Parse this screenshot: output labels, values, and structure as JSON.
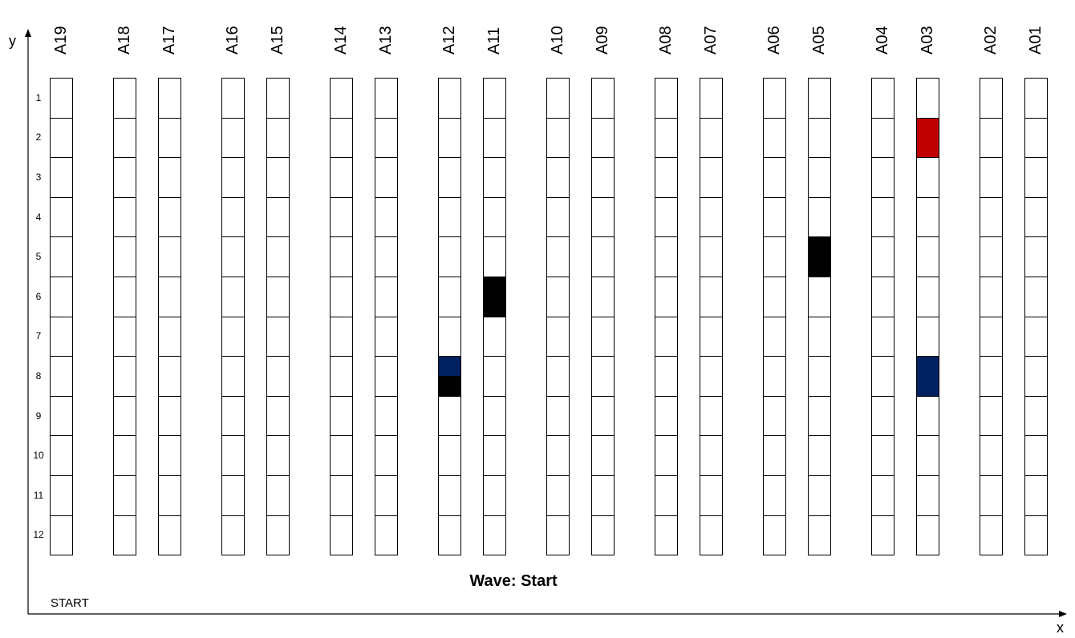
{
  "axes": {
    "y_label": "y",
    "x_label": "x"
  },
  "wave_text": "Wave: Start",
  "start_text": "START",
  "columns": [
    "A19",
    "A18",
    "A17",
    "A16",
    "A15",
    "A14",
    "A13",
    "A12",
    "A11",
    "A10",
    "A09",
    "A08",
    "A07",
    "A06",
    "A05",
    "A04",
    "A03",
    "A02",
    "A01"
  ],
  "rows": [
    "1",
    "2",
    "3",
    "4",
    "5",
    "6",
    "7",
    "8",
    "9",
    "10",
    "11",
    "12"
  ],
  "colors": {
    "red": "#c00000",
    "navy": "#002060",
    "black": "#000000",
    "cell_border": "#000000"
  },
  "marked_cells": [
    {
      "column": "A03",
      "row": 2,
      "color": "#c00000",
      "portion": "full"
    },
    {
      "column": "A05",
      "row": 5,
      "color": "#000000",
      "portion": "full"
    },
    {
      "column": "A11",
      "row": 6,
      "color": "#000000",
      "portion": "full"
    },
    {
      "column": "A12",
      "row": 8,
      "color": "#002060",
      "portion": "top-half"
    },
    {
      "column": "A12",
      "row": 8,
      "color": "#000000",
      "portion": "bottom-half"
    },
    {
      "column": "A03",
      "row": 8,
      "color": "#002060",
      "portion": "full"
    }
  ]
}
